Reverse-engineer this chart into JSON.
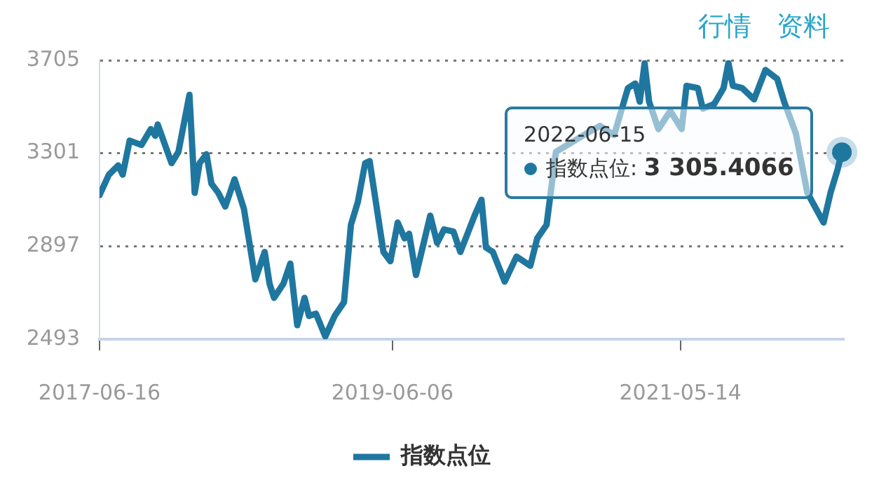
{
  "chart_data": {
    "type": "line",
    "x": [
      "2017-06-16",
      "2017-07-09",
      "2017-08-01",
      "2017-08-12",
      "2017-08-29",
      "2017-09-27",
      "2017-10-20",
      "2017-10-31",
      "2017-11-06",
      "2017-12-10",
      "2017-12-27",
      "2018-01-23",
      "2018-02-05",
      "2018-02-17",
      "2018-03-06",
      "2018-03-18",
      "2018-04-04",
      "2018-04-21",
      "2018-05-14",
      "2018-06-06",
      "2018-07-04",
      "2018-07-27",
      "2018-08-08",
      "2018-08-19",
      "2018-09-11",
      "2018-09-28",
      "2018-10-15",
      "2018-11-02",
      "2018-11-13",
      "2018-11-30",
      "2018-12-23",
      "2019-01-15",
      "2019-02-07",
      "2019-02-24",
      "2019-03-13",
      "2019-03-31",
      "2019-04-11",
      "2019-04-28",
      "2019-05-15",
      "2019-06-01",
      "2019-06-19",
      "2019-07-06",
      "2019-07-17",
      "2019-08-03",
      "2019-09-07",
      "2019-09-24",
      "2019-10-11",
      "2019-11-03",
      "2019-11-20",
      "2019-12-25",
      "2020-01-11",
      "2020-01-22",
      "2020-02-08",
      "2020-03-08",
      "2020-04-06",
      "2020-05-10",
      "2020-05-27",
      "2020-06-19",
      "2020-07-12",
      "2020-08-27",
      "2020-09-24",
      "2020-10-28",
      "2020-12-02",
      "2021-01-05",
      "2021-01-23",
      "2021-02-03",
      "2021-02-15",
      "2021-02-26",
      "2021-03-21",
      "2021-04-19",
      "2021-05-17",
      "2021-05-29",
      "2021-06-26",
      "2021-07-08",
      "2021-08-05",
      "2021-08-28",
      "2021-09-09",
      "2021-09-20",
      "2021-10-13",
      "2021-11-11",
      "2021-12-09",
      "2022-01-07",
      "2022-01-24",
      "2022-02-22",
      "2022-03-22",
      "2022-05-01",
      "2022-05-18",
      "2022-06-04",
      "2022-06-15"
    ],
    "series": [
      {
        "name": "指数点位",
        "color": "#1f77a0",
        "values": [
          3119,
          3208,
          3248,
          3208,
          3356,
          3337,
          3406,
          3377,
          3426,
          3258,
          3307,
          3555,
          3129,
          3258,
          3297,
          3169,
          3129,
          3069,
          3188,
          3059,
          2753,
          2872,
          2734,
          2673,
          2734,
          2822,
          2554,
          2673,
          2594,
          2604,
          2505,
          2594,
          2654,
          2990,
          3089,
          3258,
          3267,
          3069,
          2872,
          2832,
          3000,
          2931,
          2951,
          2772,
          3030,
          2911,
          2970,
          2961,
          2872,
          3030,
          3099,
          2891,
          2872,
          2743,
          2852,
          2812,
          2931,
          2990,
          3307,
          3356,
          3386,
          3420,
          3380,
          3584,
          3604,
          3525,
          3693,
          3525,
          3406,
          3485,
          3406,
          3594,
          3584,
          3495,
          3515,
          3584,
          3693,
          3594,
          3584,
          3535,
          3663,
          3624,
          3525,
          3386,
          3129,
          3000,
          3129,
          3228,
          3305.4066
        ]
      }
    ],
    "xlim": [
      "2017-06-16",
      "2022-06-20"
    ],
    "xticks": [
      "2017-06-16",
      "2019-06-06",
      "2021-05-14"
    ],
    "ylim": [
      2493,
      3705
    ],
    "yticks": [
      2493,
      2897,
      3301,
      3705
    ],
    "grid": "y",
    "legend": "bottom",
    "line_style": "solid",
    "marker": "none",
    "annotations": [
      "行情",
      "资料",
      {
        "text": "2022-06-15\n指数点位: 3 305.4066",
        "x": "2022-06-15",
        "y": 3305.4066
      }
    ]
  }
}
